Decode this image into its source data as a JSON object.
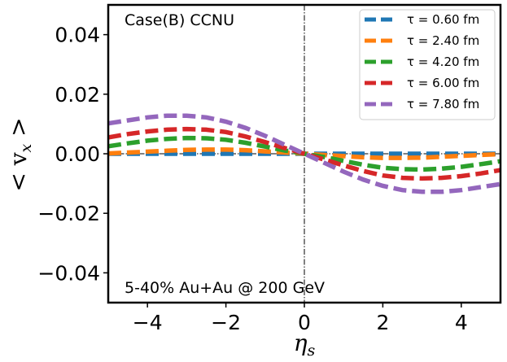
{
  "chart_data": {
    "type": "line",
    "title": "",
    "xlabel": "η",
    "xlabel_sub": "s",
    "ylabel": "< v",
    "ylabel_sub": "x",
    "ylabel_close": " >",
    "xlim": [
      -5,
      5
    ],
    "ylim": [
      -0.05,
      0.05
    ],
    "xticks": [
      -4,
      -2,
      0,
      2,
      4
    ],
    "xtick_labels": [
      "−4",
      "−2",
      "0",
      "2",
      "4"
    ],
    "yticks": [
      -0.04,
      -0.02,
      0.0,
      0.02,
      0.04
    ],
    "ytick_labels": [
      "−0.04",
      "−0.02",
      "0.00",
      "0.02",
      "0.04"
    ],
    "annotations": [
      {
        "text": "Case(B) CCNU",
        "position": "top-left"
      },
      {
        "text": "5-40% Au+Au @ 200 GeV",
        "position": "bottom-left"
      }
    ],
    "legend_position": "top-right",
    "reference_lines": {
      "horizontal_y": 0,
      "vertical_x": 0
    },
    "x": [
      -5,
      -4.5,
      -4,
      -3.5,
      -3,
      -2.5,
      -2,
      -1.5,
      -1,
      -0.5,
      0,
      0.5,
      1,
      1.5,
      2,
      2.5,
      3,
      3.5,
      4,
      4.5,
      5
    ],
    "series": [
      {
        "name": "τ = 0.60 fm",
        "color": "#1f77b4",
        "values": [
          0.0,
          0.0,
          0.0,
          0.0,
          0.0,
          0.0,
          0.0,
          0.0,
          0.0,
          0.0,
          0.0,
          0.0,
          0.0,
          0.0,
          0.0,
          0.0,
          0.0,
          0.0,
          0.0,
          0.0,
          0.0
        ]
      },
      {
        "name": "τ = 2.40 fm",
        "color": "#ff7f0e",
        "values": [
          0.0001,
          0.0004,
          0.0007,
          0.001,
          0.0013,
          0.0014,
          0.0014,
          0.0012,
          0.0008,
          0.0004,
          0.0,
          -0.0004,
          -0.0008,
          -0.0012,
          -0.0014,
          -0.0014,
          -0.0013,
          -0.001,
          -0.0007,
          -0.0004,
          -0.0001
        ]
      },
      {
        "name": "τ = 4.20 fm",
        "color": "#2ca02c",
        "values": [
          0.0025,
          0.0035,
          0.0044,
          0.005,
          0.0053,
          0.0052,
          0.0047,
          0.0037,
          0.0024,
          0.0011,
          0.0,
          -0.0011,
          -0.0024,
          -0.0037,
          -0.0047,
          -0.0052,
          -0.0053,
          -0.005,
          -0.0044,
          -0.0035,
          -0.0025
        ]
      },
      {
        "name": "τ = 6.00 fm",
        "color": "#d62728",
        "values": [
          0.0055,
          0.0066,
          0.0075,
          0.0081,
          0.0083,
          0.0081,
          0.0073,
          0.0058,
          0.0039,
          0.0019,
          0.0,
          -0.0019,
          -0.0039,
          -0.0058,
          -0.0073,
          -0.0081,
          -0.0083,
          -0.0081,
          -0.0075,
          -0.0066,
          -0.0055
        ]
      },
      {
        "name": "τ = 7.80 fm",
        "color": "#9467bd",
        "values": [
          0.0102,
          0.0112,
          0.0122,
          0.0128,
          0.0128,
          0.0122,
          0.0108,
          0.0087,
          0.006,
          0.003,
          0.0,
          -0.003,
          -0.006,
          -0.0087,
          -0.0108,
          -0.0122,
          -0.0128,
          -0.0128,
          -0.0122,
          -0.0112,
          -0.0102
        ]
      }
    ]
  }
}
